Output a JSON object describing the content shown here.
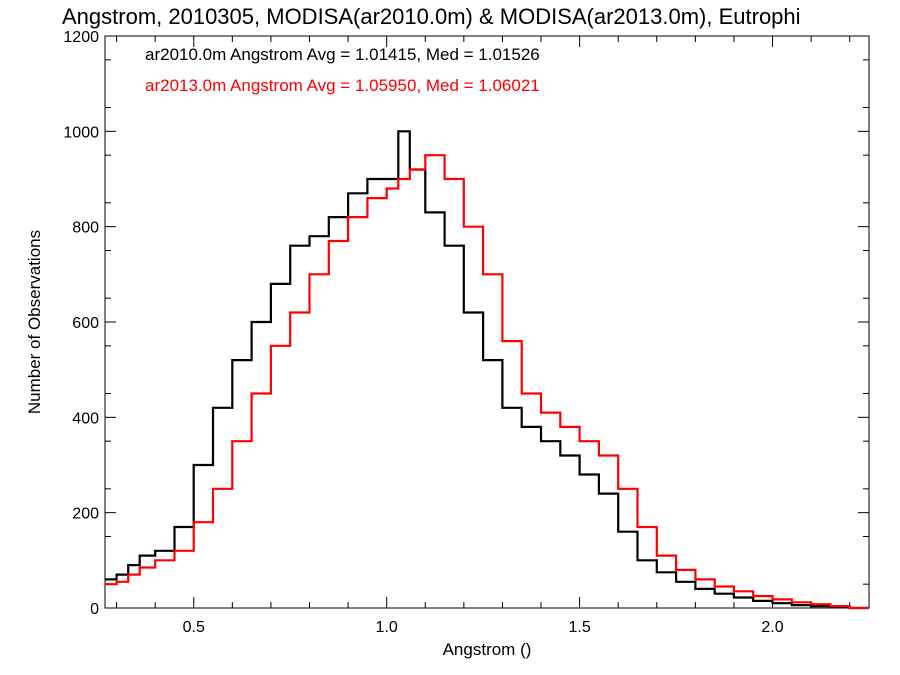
{
  "chart_data": {
    "type": "line",
    "title": "Angstrom, 2010305, MODISA(ar2010.0m) & MODISA(ar2013.0m), Eutrophi",
    "xlabel": "Angstrom ()",
    "ylabel": "Number of Observations",
    "xlim": [
      0.27,
      2.25
    ],
    "ylim": [
      0,
      1200
    ],
    "xticks": [
      "0.5",
      "1.0",
      "1.5",
      "2.0"
    ],
    "xtick_values": [
      0.5,
      1.0,
      1.5,
      2.0
    ],
    "yticks": [
      "0",
      "200",
      "400",
      "600",
      "800",
      "1000",
      "1200"
    ],
    "ytick_values": [
      0,
      200,
      400,
      600,
      800,
      1000,
      1200
    ],
    "grid": false,
    "style": "step",
    "legend_position": "top-left",
    "annotations": [
      {
        "text": "ar2010.0m Angstrom Avg = 1.01415, Med = 1.01526",
        "color": "#000000"
      },
      {
        "text": "ar2013.0m Angstrom Avg = 1.05950, Med = 1.06021",
        "color": "#ff0000"
      }
    ],
    "series": [
      {
        "color": "#000000",
        "x": [
          0.27,
          0.3,
          0.33,
          0.36,
          0.4,
          0.45,
          0.5,
          0.55,
          0.6,
          0.65,
          0.7,
          0.75,
          0.8,
          0.85,
          0.9,
          0.95,
          1.0,
          1.03,
          1.06,
          1.1,
          1.15,
          1.2,
          1.25,
          1.3,
          1.35,
          1.4,
          1.45,
          1.5,
          1.55,
          1.6,
          1.65,
          1.7,
          1.75,
          1.8,
          1.85,
          1.9,
          1.95,
          2.0,
          2.05,
          2.1,
          2.15,
          2.2,
          2.25
        ],
        "y": [
          60,
          70,
          90,
          110,
          120,
          170,
          300,
          420,
          520,
          600,
          680,
          760,
          780,
          820,
          870,
          900,
          900,
          1000,
          920,
          830,
          760,
          620,
          520,
          420,
          380,
          350,
          320,
          280,
          240,
          160,
          100,
          75,
          55,
          40,
          30,
          22,
          15,
          10,
          6,
          4,
          2,
          0,
          0
        ]
      },
      {
        "color": "#ff0000",
        "x": [
          0.27,
          0.3,
          0.33,
          0.36,
          0.4,
          0.45,
          0.5,
          0.55,
          0.6,
          0.65,
          0.7,
          0.75,
          0.8,
          0.85,
          0.9,
          0.95,
          1.0,
          1.03,
          1.06,
          1.1,
          1.15,
          1.2,
          1.25,
          1.3,
          1.35,
          1.4,
          1.45,
          1.5,
          1.55,
          1.6,
          1.65,
          1.7,
          1.75,
          1.8,
          1.85,
          1.9,
          1.95,
          2.0,
          2.05,
          2.1,
          2.15,
          2.2,
          2.25
        ],
        "y": [
          50,
          55,
          70,
          85,
          100,
          120,
          180,
          250,
          350,
          450,
          550,
          620,
          700,
          770,
          820,
          860,
          880,
          900,
          920,
          950,
          900,
          800,
          700,
          560,
          450,
          410,
          380,
          350,
          320,
          250,
          170,
          110,
          80,
          60,
          45,
          35,
          25,
          18,
          12,
          8,
          4,
          0,
          0
        ]
      }
    ]
  }
}
